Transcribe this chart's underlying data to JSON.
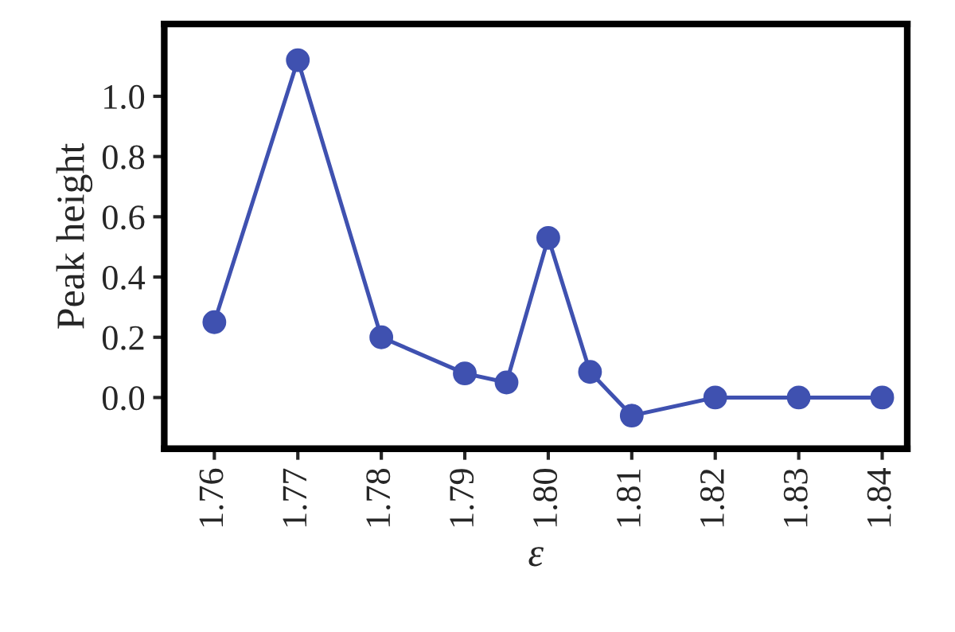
{
  "chart_data": {
    "type": "line",
    "xlabel": "ε",
    "ylabel": "Peak height",
    "x": [
      1.76,
      1.77,
      1.78,
      1.79,
      1.795,
      1.8,
      1.805,
      1.81,
      1.82,
      1.83,
      1.84
    ],
    "series": [
      {
        "color": "#3f51b0",
        "values": [
          0.25,
          1.12,
          0.2,
          0.08,
          0.05,
          0.53,
          0.085,
          -0.06,
          0.0,
          0.0,
          0.0
        ]
      }
    ],
    "xlim": [
      1.754,
      1.843
    ],
    "ylim": [
      -0.17,
      1.24
    ],
    "xticks": [
      {
        "value": 1.76,
        "label": "1.76"
      },
      {
        "value": 1.77,
        "label": "1.77"
      },
      {
        "value": 1.78,
        "label": "1.78"
      },
      {
        "value": 1.79,
        "label": "1.79"
      },
      {
        "value": 1.8,
        "label": "1.80"
      },
      {
        "value": 1.81,
        "label": "1.81"
      },
      {
        "value": 1.82,
        "label": "1.82"
      },
      {
        "value": 1.83,
        "label": "1.83"
      },
      {
        "value": 1.84,
        "label": "1.84"
      }
    ],
    "yticks": [
      {
        "value": 0.0,
        "label": "0.0"
      },
      {
        "value": 0.2,
        "label": "0.2"
      },
      {
        "value": 0.4,
        "label": "0.4"
      },
      {
        "value": 0.6,
        "label": "0.6"
      },
      {
        "value": 0.8,
        "label": "0.8"
      },
      {
        "value": 1.0,
        "label": "1.0"
      }
    ],
    "marker": "circle",
    "line_style": "solid",
    "grid": false,
    "legend": false
  }
}
